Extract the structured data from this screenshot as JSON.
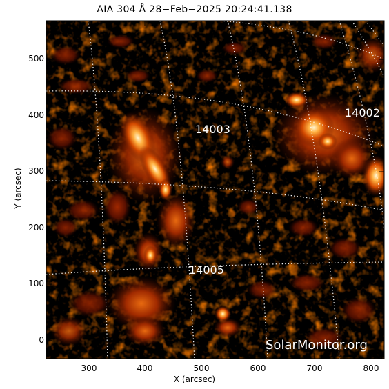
{
  "title": "AIA 304 Å 28−Feb−2025 20:24:41.138",
  "xlabel": "X (arcsec)",
  "ylabel": "Y (arcsec)",
  "x_ticks": [
    "300",
    "400",
    "500",
    "600",
    "700",
    "800"
  ],
  "y_ticks": [
    "500",
    "400",
    "300",
    "200",
    "100",
    "0"
  ],
  "active_regions": [
    "14003",
    "14002",
    "14005"
  ],
  "watermark": "SolarMonitor.org",
  "colors": {
    "background": "#000000",
    "plasma_dim": "#5a0f00",
    "plasma_mid": "#c43a00",
    "plasma_bright": "#ff9a2a",
    "plasma_hot": "#fff2c0",
    "grid": "#ffffff"
  }
}
